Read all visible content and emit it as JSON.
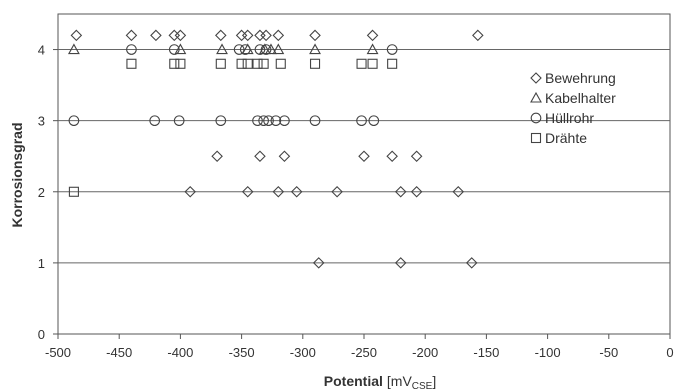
{
  "chart_data": {
    "type": "scatter",
    "title": "",
    "xlabel": "Potential",
    "xlabel_unit": "[mV",
    "xlabel_unit_sub": "CSE",
    "xlabel_unit_close": "]",
    "ylabel": "Korrosionsgrad",
    "xlim": [
      -500,
      0
    ],
    "ylim": [
      0,
      4.5
    ],
    "xticks": [
      "-500",
      "-450",
      "-400",
      "-350",
      "-300",
      "-250",
      "-200",
      "-150",
      "-100",
      "-50",
      "0"
    ],
    "yticks": [
      "0",
      "1",
      "2",
      "3",
      "4"
    ],
    "reference_lines_y": [
      1,
      2,
      3,
      4
    ],
    "grid": false,
    "legend_position": "right",
    "series": [
      {
        "name": "Bewehrung",
        "marker": "diamond",
        "points": [
          [
            -485,
            4.2
          ],
          [
            -440,
            4.2
          ],
          [
            -420,
            4.2
          ],
          [
            -405,
            4.2
          ],
          [
            -400,
            4.2
          ],
          [
            -367,
            4.2
          ],
          [
            -350,
            4.2
          ],
          [
            -345,
            4.2
          ],
          [
            -335,
            4.2
          ],
          [
            -330,
            4.2
          ],
          [
            -320,
            4.2
          ],
          [
            -290,
            4.2
          ],
          [
            -243,
            4.2
          ],
          [
            -157,
            4.2
          ],
          [
            -370,
            2.5
          ],
          [
            -335,
            2.5
          ],
          [
            -315,
            2.5
          ],
          [
            -250,
            2.5
          ],
          [
            -227,
            2.5
          ],
          [
            -207,
            2.5
          ],
          [
            -392,
            2.0
          ],
          [
            -345,
            2.0
          ],
          [
            -320,
            2.0
          ],
          [
            -305,
            2.0
          ],
          [
            -272,
            2.0
          ],
          [
            -220,
            2.0
          ],
          [
            -207,
            2.0
          ],
          [
            -173,
            2.0
          ],
          [
            -287,
            1.0
          ],
          [
            -220,
            1.0
          ],
          [
            -162,
            1.0
          ]
        ]
      },
      {
        "name": "Kabelhalter",
        "marker": "triangle",
        "points": [
          [
            -487,
            4.0
          ],
          [
            -400,
            4.0
          ],
          [
            -366,
            4.0
          ],
          [
            -345,
            4.0
          ],
          [
            -331,
            4.0
          ],
          [
            -326,
            4.0
          ],
          [
            -320,
            4.0
          ],
          [
            -290,
            4.0
          ],
          [
            -243,
            4.0
          ]
        ]
      },
      {
        "name": "Hüllrohr",
        "marker": "circle",
        "points": [
          [
            -440,
            4.0
          ],
          [
            -405,
            4.0
          ],
          [
            -352,
            4.0
          ],
          [
            -347,
            4.0
          ],
          [
            -335,
            4.0
          ],
          [
            -330,
            4.0
          ],
          [
            -227,
            4.0
          ],
          [
            -487,
            3.0
          ],
          [
            -421,
            3.0
          ],
          [
            -401,
            3.0
          ],
          [
            -367,
            3.0
          ],
          [
            -337,
            3.0
          ],
          [
            -332,
            3.0
          ],
          [
            -328,
            3.0
          ],
          [
            -322,
            3.0
          ],
          [
            -315,
            3.0
          ],
          [
            -290,
            3.0
          ],
          [
            -252,
            3.0
          ],
          [
            -242,
            3.0
          ]
        ]
      },
      {
        "name": "Drähte",
        "marker": "square",
        "points": [
          [
            -440,
            3.8
          ],
          [
            -405,
            3.8
          ],
          [
            -400,
            3.8
          ],
          [
            -367,
            3.8
          ],
          [
            -350,
            3.8
          ],
          [
            -345,
            3.8
          ],
          [
            -337,
            3.8
          ],
          [
            -332,
            3.8
          ],
          [
            -318,
            3.8
          ],
          [
            -290,
            3.8
          ],
          [
            -252,
            3.8
          ],
          [
            -243,
            3.8
          ],
          [
            -227,
            3.8
          ],
          [
            -487,
            2.0
          ]
        ]
      }
    ]
  }
}
